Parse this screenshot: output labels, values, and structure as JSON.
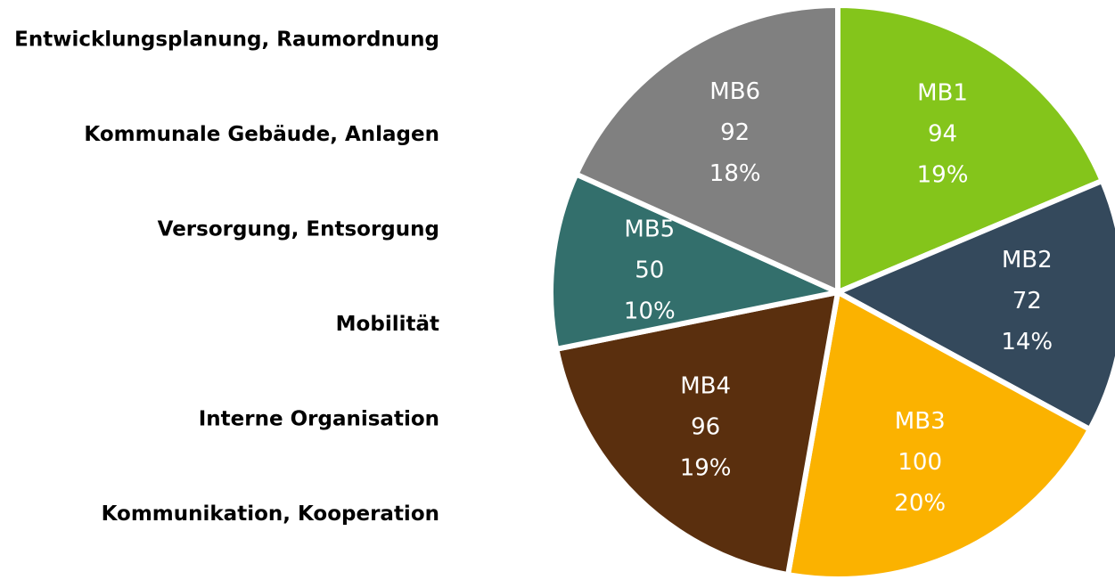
{
  "chart_data": {
    "type": "pie",
    "categories": [
      "MB1",
      "MB2",
      "MB3",
      "MB4",
      "MB5",
      "MB6"
    ],
    "values": [
      94,
      72,
      100,
      96,
      50,
      92
    ],
    "percent_labels": [
      "19%",
      "14%",
      "20%",
      "19%",
      "10%",
      "18%"
    ],
    "colors": [
      "#84c51b",
      "#34495c",
      "#fbb200",
      "#5a2f0e",
      "#336f6c",
      "#808080"
    ],
    "descriptions": [
      "Entwicklungsplanung, Raumordnung",
      "Kommunale Gebäude, Anlagen",
      "Versorgung, Entsorgung",
      "Mobilität",
      "Interne Organisation",
      "Kommunikation, Kooperation"
    ]
  }
}
